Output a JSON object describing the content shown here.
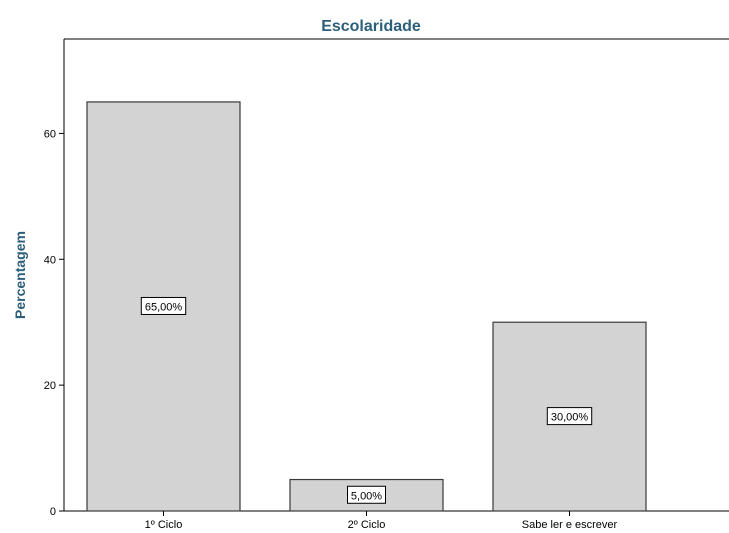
{
  "chart_data": {
    "type": "bar",
    "title": "Escolaridade",
    "xlabel": "",
    "ylabel": "Percentagem",
    "categories": [
      "1º Ciclo",
      "2º Ciclo",
      "Sabe ler e escrever"
    ],
    "values": [
      65,
      5,
      30
    ],
    "data_labels": [
      "65,00%",
      "5,00%",
      "30,00%"
    ],
    "ylim": [
      0,
      75
    ],
    "yticks": [
      0,
      20,
      40,
      60
    ],
    "grid": false,
    "legend": "none",
    "colors": {
      "bar_fill": "#d3d3d3",
      "bar_stroke": "#3a3a3a",
      "title": "#2c5f7a",
      "axis": "#000000"
    }
  }
}
